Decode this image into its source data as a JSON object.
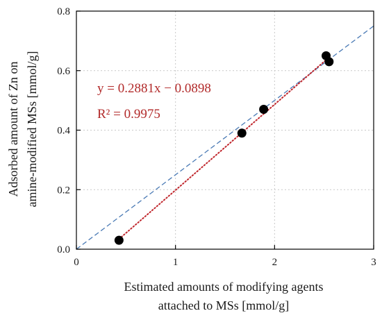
{
  "chart_data": {
    "type": "scatter",
    "xlabel": [
      "Estimated amounts of modifying agents",
      "attached to MSs [mmol/g]"
    ],
    "ylabel": [
      "Adsorbed amount of Zn on",
      "amine-modified MSs [mmol/g]"
    ],
    "xlim": [
      0,
      3
    ],
    "ylim": [
      0,
      0.8
    ],
    "x_ticks": [
      0,
      1,
      2,
      3
    ],
    "y_ticks": [
      0.0,
      0.2,
      0.4,
      0.6,
      0.8
    ],
    "x_tick_labels": [
      "0",
      "1",
      "2",
      "3"
    ],
    "y_tick_labels": [
      "0.0",
      "0.2",
      "0.4",
      "0.6",
      "0.8"
    ],
    "grid": true,
    "points": [
      {
        "x": 0.43,
        "y": 0.03
      },
      {
        "x": 1.67,
        "y": 0.39
      },
      {
        "x": 1.89,
        "y": 0.47
      },
      {
        "x": 2.52,
        "y": 0.65
      },
      {
        "x": 2.55,
        "y": 0.63
      }
    ],
    "fit_line": {
      "slope": 0.2881,
      "intercept": -0.0898,
      "x_range": [
        0.43,
        2.55
      ]
    },
    "reference_line": {
      "x_range": [
        0,
        3
      ],
      "y_range": [
        0,
        0.75
      ]
    },
    "annotations": {
      "equation": "y = 0.2881x − 0.0898",
      "r2": "R² = 0.9975"
    },
    "colors": {
      "points": "#000000",
      "fit": "#c0262c",
      "reference": "#4a7ab5",
      "annotation": "#b22a2a",
      "grid": "#c8c8c8"
    }
  }
}
